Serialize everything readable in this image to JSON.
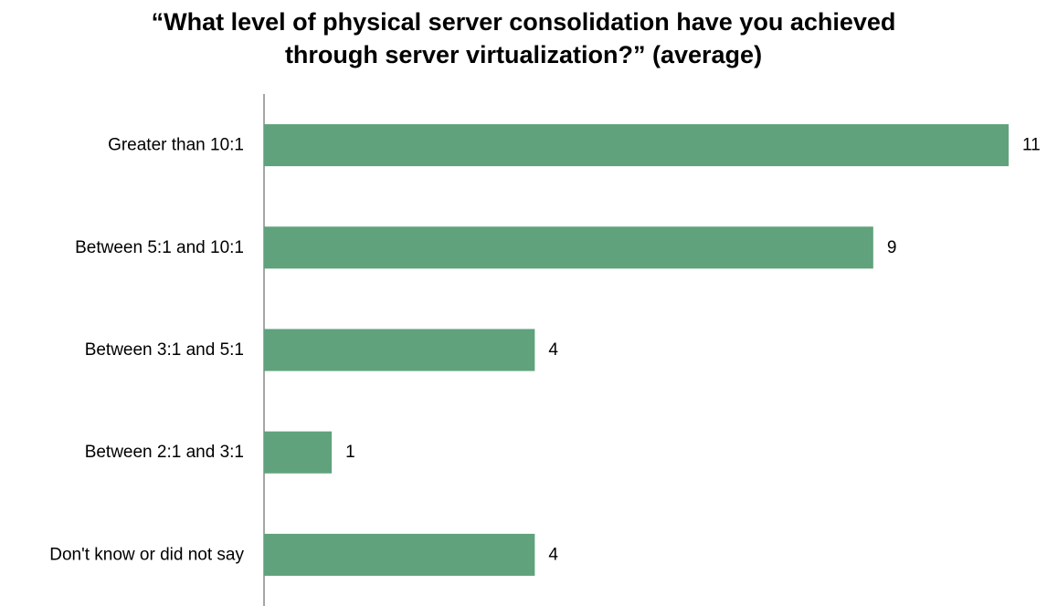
{
  "chart_data": {
    "type": "bar",
    "orientation": "horizontal",
    "title_lines": [
      "“What level of physical server consolidation have you achieved",
      "through server virtualization?” (average)"
    ],
    "categories": [
      "Greater than 10:1",
      "Between 5:1 and 10:1",
      "Between 3:1 and 5:1",
      "Between 2:1 and 3:1",
      "Don't know or did not say"
    ],
    "values": [
      11,
      9,
      4,
      1,
      4
    ],
    "data_labels": [
      "11",
      "9",
      "4",
      "1",
      "4"
    ],
    "xlim": [
      0,
      11
    ],
    "grid": false,
    "legend": "none",
    "bar_color": "#5fa27c",
    "axis_color": "#888888"
  }
}
